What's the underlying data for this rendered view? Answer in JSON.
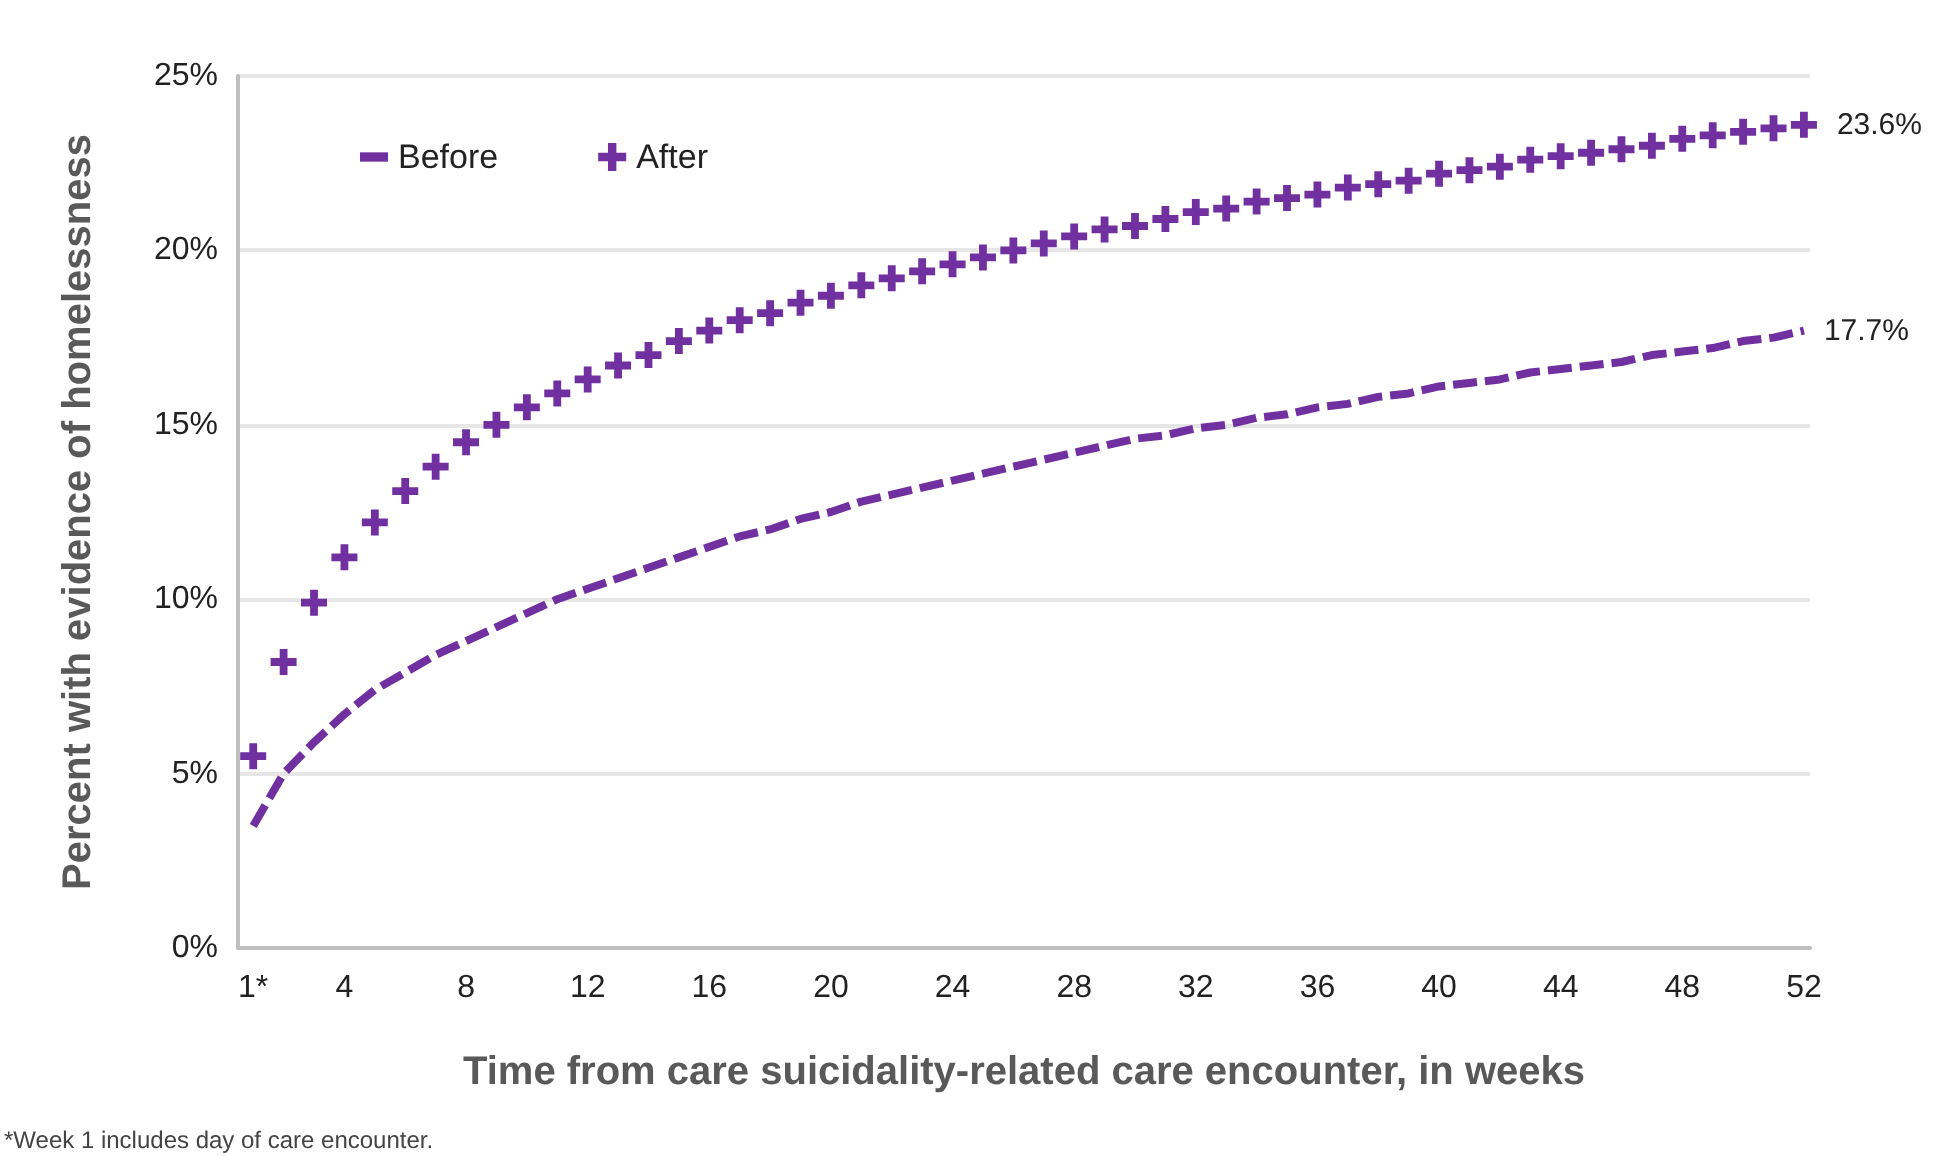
{
  "chart_data": {
    "type": "scatter",
    "ylabel": "Percent with evidence of homelessness",
    "xlabel": "Time from care suicidality-related care encounter, in weeks",
    "annotations": [
      "*Week 1 includes day of care encounter."
    ],
    "x": [
      1,
      2,
      3,
      4,
      5,
      6,
      7,
      8,
      9,
      10,
      11,
      12,
      13,
      14,
      15,
      16,
      17,
      18,
      19,
      20,
      21,
      22,
      23,
      24,
      25,
      26,
      27,
      28,
      29,
      30,
      31,
      32,
      33,
      34,
      35,
      36,
      37,
      38,
      39,
      40,
      41,
      42,
      43,
      44,
      45,
      46,
      47,
      48,
      49,
      50,
      51,
      52
    ],
    "xlim": [
      0.5,
      52.2
    ],
    "xticks": [
      {
        "value": 1,
        "label": "1*"
      },
      4,
      8,
      12,
      16,
      20,
      24,
      28,
      32,
      36,
      40,
      44,
      48,
      52
    ],
    "series": [
      {
        "name": "Before",
        "type": "line",
        "line_style": "dashed",
        "marker": "none",
        "color": "#7030a0",
        "values": [
          3.5,
          5.0,
          5.9,
          6.7,
          7.4,
          7.9,
          8.4,
          8.8,
          9.2,
          9.6,
          10.0,
          10.3,
          10.6,
          10.9,
          11.2,
          11.5,
          11.8,
          12.0,
          12.3,
          12.5,
          12.8,
          13.0,
          13.2,
          13.4,
          13.6,
          13.8,
          14.0,
          14.2,
          14.4,
          14.6,
          14.7,
          14.9,
          15.0,
          15.2,
          15.3,
          15.5,
          15.6,
          15.8,
          15.9,
          16.1,
          16.2,
          16.3,
          16.5,
          16.6,
          16.7,
          16.8,
          17.0,
          17.1,
          17.2,
          17.4,
          17.5,
          17.7
        ],
        "value_labels": [
          null,
          null,
          null,
          null,
          null,
          null,
          null,
          null,
          null,
          null,
          null,
          null,
          null,
          null,
          null,
          null,
          null,
          null,
          null,
          null,
          null,
          null,
          null,
          null,
          null,
          null,
          null,
          null,
          null,
          null,
          null,
          null,
          null,
          null,
          null,
          null,
          null,
          null,
          null,
          null,
          null,
          null,
          null,
          null,
          null,
          null,
          null,
          null,
          null,
          null,
          null,
          "17.7%"
        ]
      },
      {
        "name": "After",
        "marker": "cross",
        "color": "#7030a0",
        "values": [
          5.5,
          8.2,
          9.9,
          11.2,
          12.2,
          13.1,
          13.8,
          14.5,
          15.0,
          15.5,
          15.9,
          16.3,
          16.7,
          17.0,
          17.4,
          17.7,
          18.0,
          18.2,
          18.5,
          18.7,
          19.0,
          19.2,
          19.4,
          19.6,
          19.8,
          20.0,
          20.2,
          20.4,
          20.6,
          20.7,
          20.9,
          21.1,
          21.2,
          21.4,
          21.5,
          21.6,
          21.8,
          21.9,
          22.0,
          22.2,
          22.3,
          22.4,
          22.6,
          22.7,
          22.8,
          22.9,
          23.0,
          23.2,
          23.3,
          23.4,
          23.5,
          23.6
        ],
        "value_labels": [
          null,
          null,
          null,
          null,
          null,
          null,
          null,
          null,
          null,
          null,
          null,
          null,
          null,
          null,
          null,
          null,
          null,
          null,
          null,
          null,
          null,
          null,
          null,
          null,
          null,
          null,
          null,
          null,
          null,
          null,
          null,
          null,
          null,
          null,
          null,
          null,
          null,
          null,
          null,
          null,
          null,
          null,
          null,
          null,
          null,
          null,
          null,
          null,
          null,
          null,
          null,
          "23.6%"
        ]
      }
    ],
    "ylim": [
      0,
      25
    ],
    "yticks": [
      {
        "value": 0,
        "label": "0%"
      },
      {
        "value": 5,
        "label": "5%"
      },
      {
        "value": 10,
        "label": "10%"
      },
      {
        "value": 15,
        "label": "15%"
      },
      {
        "value": 20,
        "label": "20%"
      },
      {
        "value": 25,
        "label": "25%"
      }
    ],
    "grid": "y",
    "legend": "top left"
  }
}
